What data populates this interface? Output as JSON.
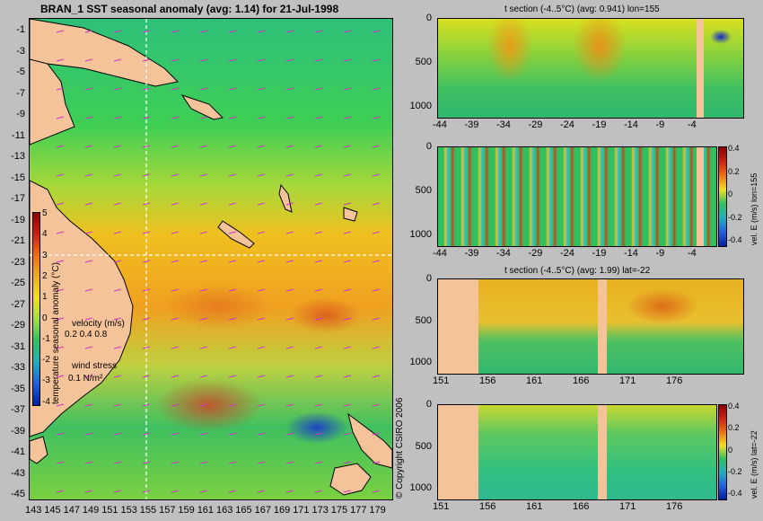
{
  "map": {
    "title": "BRAN_1  SST seasonal anomaly (avg: 1.14) for 21-Jul-1998",
    "y_ticks": [
      "-1",
      "-3",
      "-5",
      "-7",
      "-9",
      "-11",
      "-13",
      "-15",
      "-17",
      "-19",
      "-21",
      "-23",
      "-25",
      "-27",
      "-29",
      "-31",
      "-33",
      "-35",
      "-37",
      "-39",
      "-41",
      "-43",
      "-45"
    ],
    "x_ticks": [
      "143",
      "145",
      "147",
      "149",
      "151",
      "153",
      "155",
      "157",
      "159",
      "161",
      "163",
      "165",
      "167",
      "169",
      "171",
      "173",
      "175",
      "177",
      "179"
    ],
    "colorbar": {
      "label": "temperature seasonal anomaly (°C)",
      "ticks": [
        "5",
        "4",
        "3",
        "2",
        "1",
        "0",
        "-1",
        "-2",
        "-3",
        "-4"
      ],
      "colors": [
        "#8b0000",
        "#d02010",
        "#f07010",
        "#f0b020",
        "#f0e020",
        "#a0e040",
        "#30c060",
        "#20b0c0",
        "#2060e0",
        "#0020a0"
      ]
    },
    "legend": {
      "velocity_label": "velocity (m/s)",
      "velocity_scale": "0.2 0.4 0.8",
      "wind_label": "wind stress",
      "wind_scale": "0.1 N/m²"
    },
    "copyright": "© Copyright CSIRO 2006"
  },
  "sections": [
    {
      "title": "t section (-4..5°C) (avg: 0.941) lon=155",
      "y_ticks": [
        "0",
        "500",
        "1000"
      ],
      "x_ticks": [
        "-44",
        "-39",
        "-34",
        "-29",
        "-24",
        "-19",
        "-14",
        "-9",
        "-4"
      ],
      "colorbar": null
    },
    {
      "title": "",
      "y_ticks": [
        "0",
        "500",
        "1000"
      ],
      "x_ticks": [
        "-44",
        "-39",
        "-34",
        "-29",
        "-24",
        "-19",
        "-14",
        "-9",
        "-4"
      ],
      "colorbar": {
        "label": "vel. E (m/s) lon=155",
        "ticks": [
          "0.4",
          "0.2",
          "0",
          "-0.2",
          "-0.4"
        ]
      }
    },
    {
      "title": "t section (-4..5°C) (avg: 1.99) lat=-22",
      "y_ticks": [
        "0",
        "500",
        "1000"
      ],
      "x_ticks": [
        "151",
        "156",
        "161",
        "166",
        "171",
        "176"
      ],
      "colorbar": null
    },
    {
      "title": "",
      "y_ticks": [
        "0",
        "500",
        "1000"
      ],
      "x_ticks": [
        "151",
        "156",
        "161",
        "166",
        "171",
        "176"
      ],
      "colorbar": {
        "label": "vel. E (m/s) lat=-22",
        "ticks": [
          "0.4",
          "0.2",
          "0",
          "-0.2",
          "-0.4"
        ]
      }
    }
  ]
}
